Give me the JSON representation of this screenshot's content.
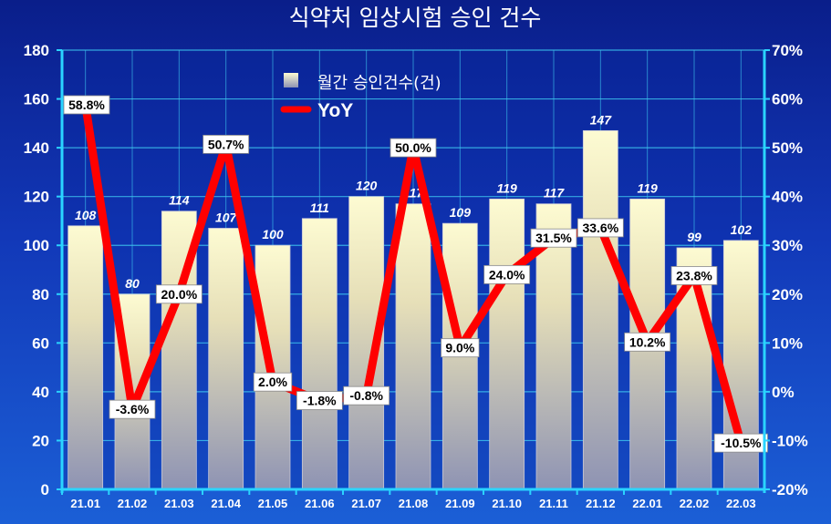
{
  "title": "식약처 임상시험 승인 건수",
  "legend": {
    "bars_label": "월간 승인건수(건)",
    "line_label": "YoY"
  },
  "colors": {
    "line": "#ff0000",
    "bar_top": "#fdfbd2",
    "bar_bottom": "#8e93b3",
    "grid": "#3ec8f0",
    "axis": "#2ad4ff"
  },
  "chart_data": {
    "type": "bar",
    "categories": [
      "21.01",
      "21.02",
      "21.03",
      "21.04",
      "21.05",
      "21.06",
      "21.07",
      "21.08",
      "21.09",
      "21.10",
      "21.11",
      "21.12",
      "22.01",
      "22.02",
      "22.03"
    ],
    "series": [
      {
        "name": "월간 승인건수(건)",
        "type": "bar",
        "axis": "left",
        "values": [
          108,
          80,
          114,
          107,
          100,
          111,
          120,
          117,
          109,
          119,
          117,
          147,
          119,
          99,
          102
        ],
        "labels": [
          "108",
          "80",
          "114",
          "107",
          "100",
          "111",
          "120",
          "117",
          "109",
          "119",
          "117",
          "147",
          "119",
          "99",
          "102"
        ]
      },
      {
        "name": "YoY",
        "type": "line",
        "axis": "right",
        "values": [
          58.8,
          -3.6,
          20.0,
          50.7,
          2.0,
          -1.8,
          -0.8,
          50.0,
          9.0,
          24.0,
          31.5,
          33.6,
          10.2,
          23.8,
          -10.5
        ],
        "labels": [
          "58.8%",
          "-3.6%",
          "20.0%",
          "50.7%",
          "2.0%",
          "-1.8%",
          "-0.8%",
          "50.0%",
          "9.0%",
          "24.0%",
          "31.5%",
          "33.6%",
          "10.2%",
          "23.8%",
          "-10.5%"
        ]
      }
    ],
    "ylim": [
      0,
      180
    ],
    "y_ticks": [
      "0",
      "20",
      "40",
      "60",
      "80",
      "100",
      "120",
      "140",
      "160",
      "180"
    ],
    "y2lim": [
      -20,
      70
    ],
    "y2_ticks": [
      "-20%",
      "-10%",
      "0%",
      "10%",
      "20%",
      "30%",
      "40%",
      "50%",
      "60%",
      "70%"
    ],
    "grid": true,
    "legend_position": "top-left"
  }
}
